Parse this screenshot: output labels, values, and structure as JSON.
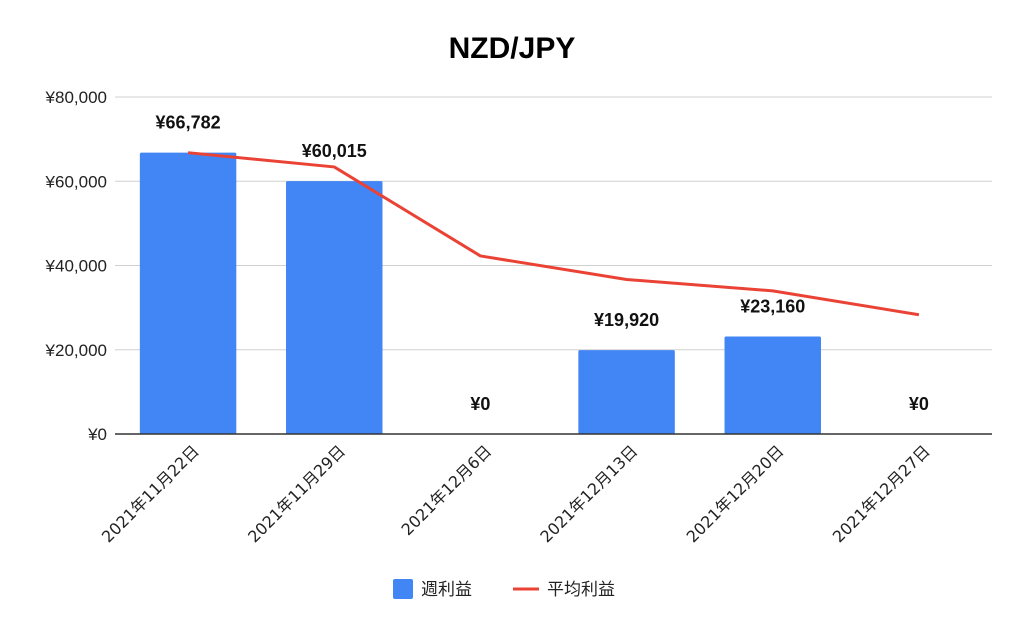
{
  "chart_data": {
    "type": "bar",
    "title": "NZD/JPY",
    "categories": [
      "2021年11月22日",
      "2021年11月29日",
      "2021年12月6日",
      "2021年12月13日",
      "2021年12月20日",
      "2021年12月27日"
    ],
    "series": [
      {
        "name": "週利益",
        "type": "bar",
        "color": "#4285f4",
        "values": [
          66782,
          60015,
          0,
          19920,
          23160,
          0
        ]
      },
      {
        "name": "平均利益",
        "type": "line",
        "color": "#ea4335",
        "values": [
          66782,
          63398,
          42266,
          36679,
          33975,
          28313
        ]
      }
    ],
    "data_labels": [
      "¥66,782",
      "¥60,015",
      "¥0",
      "¥19,920",
      "¥23,160",
      "¥0"
    ],
    "y_ticks": [
      "¥0",
      "¥20,000",
      "¥40,000",
      "¥60,000",
      "¥80,000"
    ],
    "ylim": [
      0,
      80000
    ],
    "xlabel": "",
    "ylabel": "",
    "legend": "bottom",
    "grid": true
  }
}
